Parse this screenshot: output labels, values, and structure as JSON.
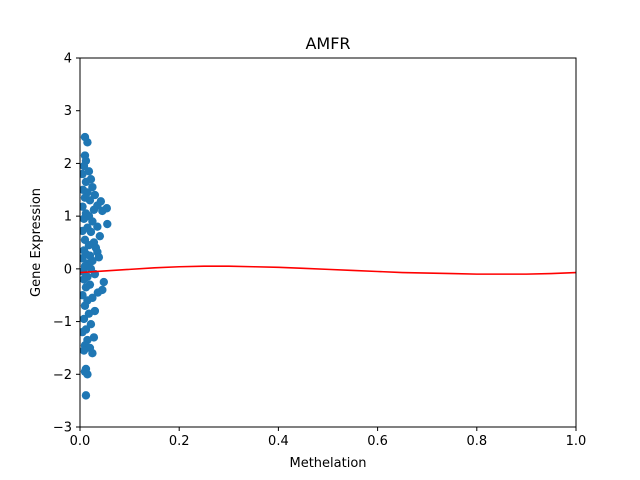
{
  "chart_data": {
    "type": "scatter",
    "title": "AMFR",
    "xlabel": "Methelation",
    "ylabel": "Gene Expression",
    "xlim": [
      0.0,
      1.0
    ],
    "ylim": [
      -3,
      4
    ],
    "x_ticks": [
      "0.0",
      "0.2",
      "0.4",
      "0.6",
      "0.8",
      "1.0"
    ],
    "y_ticks": [
      "-3",
      "-2",
      "-1",
      "0",
      "1",
      "2",
      "3",
      "4"
    ],
    "grid": false,
    "colors": {
      "points": "#1f77b4",
      "fit_line": "#ff0000"
    },
    "series": [
      {
        "type": "scatter",
        "points": [
          [
            0.01,
            2.5
          ],
          [
            0.015,
            2.4
          ],
          [
            0.01,
            2.15
          ],
          [
            0.012,
            2.05
          ],
          [
            0.008,
            1.95
          ],
          [
            0.018,
            1.85
          ],
          [
            0.005,
            1.8
          ],
          [
            0.022,
            1.7
          ],
          [
            0.012,
            1.65
          ],
          [
            0.025,
            1.55
          ],
          [
            0.006,
            1.5
          ],
          [
            0.015,
            1.45
          ],
          [
            0.03,
            1.4
          ],
          [
            0.01,
            1.35
          ],
          [
            0.02,
            1.3
          ],
          [
            0.042,
            1.28
          ],
          [
            0.035,
            1.2
          ],
          [
            0.005,
            1.18
          ],
          [
            0.054,
            1.15
          ],
          [
            0.028,
            1.12
          ],
          [
            0.045,
            1.1
          ],
          [
            0.012,
            1.05
          ],
          [
            0.018,
            1.0
          ],
          [
            0.008,
            0.95
          ],
          [
            0.025,
            0.9
          ],
          [
            0.055,
            0.85
          ],
          [
            0.035,
            0.8
          ],
          [
            0.015,
            0.78
          ],
          [
            0.005,
            0.72
          ],
          [
            0.022,
            0.7
          ],
          [
            0.04,
            0.62
          ],
          [
            0.01,
            0.55
          ],
          [
            0.028,
            0.5
          ],
          [
            0.018,
            0.45
          ],
          [
            0.032,
            0.4
          ],
          [
            0.008,
            0.35
          ],
          [
            0.035,
            0.32
          ],
          [
            0.012,
            0.28
          ],
          [
            0.02,
            0.25
          ],
          [
            0.005,
            0.2
          ],
          [
            0.038,
            0.22
          ],
          [
            0.025,
            0.15
          ],
          [
            0.015,
            0.1
          ],
          [
            0.01,
            0.05
          ],
          [
            0.022,
            0.0
          ],
          [
            0.006,
            -0.05
          ],
          [
            0.03,
            -0.1
          ],
          [
            0.015,
            -0.15
          ],
          [
            0.008,
            -0.2
          ],
          [
            0.048,
            -0.25
          ],
          [
            0.02,
            -0.3
          ],
          [
            0.012,
            -0.35
          ],
          [
            0.045,
            -0.4
          ],
          [
            0.036,
            -0.45
          ],
          [
            0.005,
            -0.5
          ],
          [
            0.025,
            -0.55
          ],
          [
            0.015,
            -0.6
          ],
          [
            0.01,
            -0.7
          ],
          [
            0.03,
            -0.8
          ],
          [
            0.018,
            -0.85
          ],
          [
            0.008,
            -0.95
          ],
          [
            0.022,
            -1.05
          ],
          [
            0.012,
            -1.15
          ],
          [
            0.005,
            -1.2
          ],
          [
            0.028,
            -1.3
          ],
          [
            0.015,
            -1.35
          ],
          [
            0.01,
            -1.45
          ],
          [
            0.02,
            -1.5
          ],
          [
            0.008,
            -1.55
          ],
          [
            0.025,
            -1.6
          ],
          [
            0.012,
            -1.9
          ],
          [
            0.015,
            -2.0
          ],
          [
            0.01,
            -1.95
          ],
          [
            0.012,
            -2.4
          ]
        ]
      },
      {
        "type": "line",
        "points": [
          [
            0.0,
            -0.07
          ],
          [
            0.05,
            -0.04
          ],
          [
            0.1,
            -0.01
          ],
          [
            0.15,
            0.02
          ],
          [
            0.2,
            0.04
          ],
          [
            0.25,
            0.05
          ],
          [
            0.3,
            0.05
          ],
          [
            0.35,
            0.04
          ],
          [
            0.4,
            0.03
          ],
          [
            0.45,
            0.01
          ],
          [
            0.5,
            -0.01
          ],
          [
            0.55,
            -0.03
          ],
          [
            0.6,
            -0.05
          ],
          [
            0.65,
            -0.07
          ],
          [
            0.7,
            -0.08
          ],
          [
            0.75,
            -0.09
          ],
          [
            0.8,
            -0.1
          ],
          [
            0.85,
            -0.1
          ],
          [
            0.9,
            -0.1
          ],
          [
            0.95,
            -0.09
          ],
          [
            1.0,
            -0.07
          ]
        ]
      }
    ]
  }
}
